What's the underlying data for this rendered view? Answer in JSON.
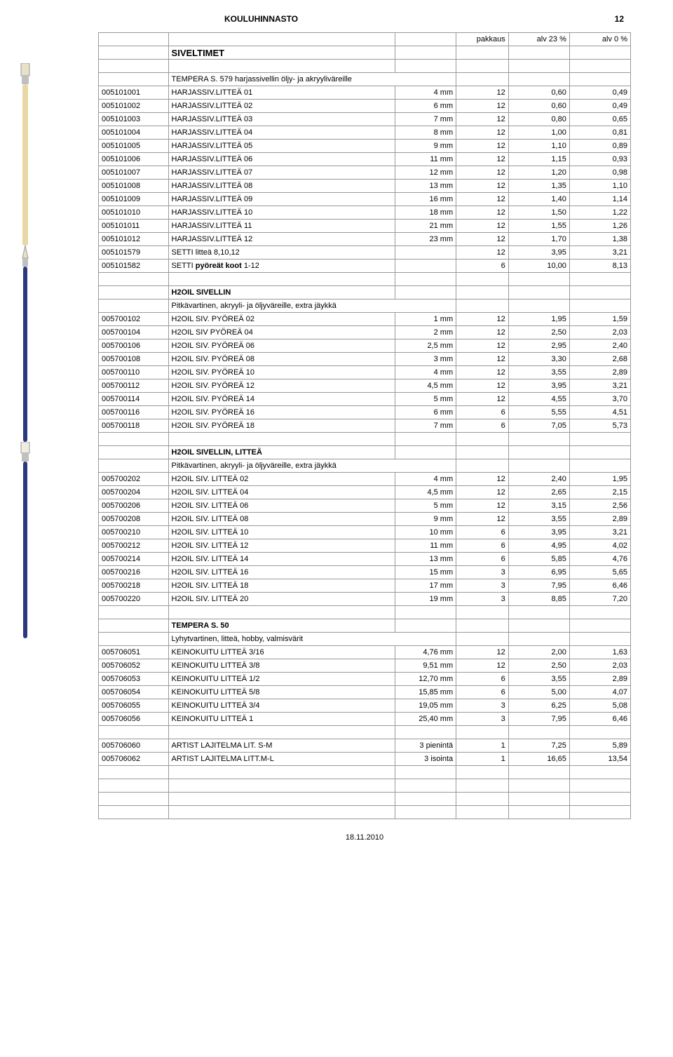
{
  "header": {
    "title": "KOULUHINNASTO",
    "page": "12"
  },
  "top_cols": {
    "c1": "pakkaus",
    "c2": "alv 23 %",
    "c3": "alv 0 %",
    "main": "SIVELTIMET"
  },
  "footer": "18.11.2010",
  "sections": [
    {
      "subtitle": "TEMPERA S. 579 harjassivellin öljy- ja akryyliväreille",
      "rows": [
        [
          "005101001",
          "HARJASSIV.LITTEÄ  01",
          "4 mm",
          "12",
          "0,60",
          "0,49"
        ],
        [
          "005101002",
          "HARJASSIV.LITTEÄ  02",
          "6 mm",
          "12",
          "0,60",
          "0,49"
        ],
        [
          "005101003",
          "HARJASSIV.LITTEÄ  03",
          "7 mm",
          "12",
          "0,80",
          "0,65"
        ],
        [
          "005101004",
          "HARJASSIV.LITTEÄ  04",
          "8 mm",
          "12",
          "1,00",
          "0,81"
        ],
        [
          "005101005",
          "HARJASSIV.LITTEÄ  05",
          "9 mm",
          "12",
          "1,10",
          "0,89"
        ],
        [
          "005101006",
          "HARJASSIV.LITTEÄ  06",
          "11 mm",
          "12",
          "1,15",
          "0,93"
        ],
        [
          "005101007",
          "HARJASSIV.LITTEÄ  07",
          "12 mm",
          "12",
          "1,20",
          "0,98"
        ],
        [
          "005101008",
          "HARJASSIV.LITTEÄ  08",
          "13 mm",
          "12",
          "1,35",
          "1,10"
        ],
        [
          "005101009",
          "HARJASSIV.LITTEÄ  09",
          "16 mm",
          "12",
          "1,40",
          "1,14"
        ],
        [
          "005101010",
          "HARJASSIV.LITTEÄ  10",
          "18 mm",
          "12",
          "1,50",
          "1,22"
        ],
        [
          "005101011",
          "HARJASSIV.LITTEÄ  11",
          "21 mm",
          "12",
          "1,55",
          "1,26"
        ],
        [
          "005101012",
          "HARJASSIV.LITTEÄ  12",
          "23 mm",
          "12",
          "1,70",
          "1,38"
        ],
        [
          "005101579",
          "SETTI litteä 8,10,12",
          "",
          "12",
          "3,95",
          "3,21"
        ],
        [
          "005101582",
          "SETTI <b>pyöreät koot</b> 1-12",
          "",
          "6",
          "10,00",
          "8,13"
        ]
      ]
    },
    {
      "title": "H2OIL SIVELLIN",
      "subtitle": "Pitkävartinen, akryyli- ja öljyväreille, extra jäykkä",
      "rows": [
        [
          "005700102",
          "H2OIL SIV. PYÖREÄ  02",
          "1 mm",
          "12",
          "1,95",
          "1,59"
        ],
        [
          "005700104",
          "H2OIL SIV PYÖREÄ   04",
          "2 mm",
          "12",
          "2,50",
          "2,03"
        ],
        [
          "005700106",
          "H2OIL SIV. PYÖREÄ  06",
          "2,5 mm",
          "12",
          "2,95",
          "2,40"
        ],
        [
          "005700108",
          "H2OIL SIV. PYÖREÄ  08",
          "3 mm",
          "12",
          "3,30",
          "2,68"
        ],
        [
          "005700110",
          "H2OIL SIV. PYÖREÄ  10",
          "4 mm",
          "12",
          "3,55",
          "2,89"
        ],
        [
          "005700112",
          "H2OIL SIV. PYÖREÄ  12",
          "4,5 mm",
          "12",
          "3,95",
          "3,21"
        ],
        [
          "005700114",
          "H2OIL SIV. PYÖREÄ  14",
          "5 mm",
          "12",
          "4,55",
          "3,70"
        ],
        [
          "005700116",
          "H2OIL SIV. PYÖREÄ  16",
          "6 mm",
          "6",
          "5,55",
          "4,51"
        ],
        [
          "005700118",
          "H2OIL SIV. PYÖREÄ  18",
          "7 mm",
          "6",
          "7,05",
          "5,73"
        ]
      ]
    },
    {
      "title": "H2OIL SIVELLIN, LITTEÄ",
      "subtitle": "Pitkävartinen, akryyli- ja öljyväreille, extra jäykkä",
      "rows": [
        [
          "005700202",
          "H2OIL SIV. LITTEÄ  02",
          "4 mm",
          "12",
          "2,40",
          "1,95"
        ],
        [
          "005700204",
          "H2OIL SIV. LITTEÄ  04",
          "4,5 mm",
          "12",
          "2,65",
          "2,15"
        ],
        [
          "005700206",
          "H2OIL SIV. LITTEÄ  06",
          "5 mm",
          "12",
          "3,15",
          "2,56"
        ],
        [
          "005700208",
          "H2OIL SIV. LITTEÄ  08",
          "9 mm",
          "12",
          "3,55",
          "2,89"
        ],
        [
          "005700210",
          "H2OIL SIV. LITTEÄ  10",
          "10 mm",
          "6",
          "3,95",
          "3,21"
        ],
        [
          "005700212",
          "H2OIL SIV. LITTEÄ  12",
          "11 mm",
          "6",
          "4,95",
          "4,02"
        ],
        [
          "005700214",
          "H2OIL SIV. LITTEÄ  14",
          "13 mm",
          "6",
          "5,85",
          "4,76"
        ],
        [
          "005700216",
          "H2OIL SIV. LITTEÄ  16",
          "15 mm",
          "3",
          "6,95",
          "5,65"
        ],
        [
          "005700218",
          "H2OIL SIV. LITTEÄ  18",
          "17 mm",
          "3",
          "7,95",
          "6,46"
        ],
        [
          "005700220",
          "H2OIL SIV. LITTEÄ  20",
          "19 mm",
          "3",
          "8,85",
          "7,20"
        ]
      ]
    },
    {
      "title": "TEMPERA S. 50",
      "subtitle": "Lyhytvartinen, litteä, hobby, valmisvärit",
      "rows": [
        [
          "005706051",
          "KEINOKUITU LITTEÄ  3/16",
          "4,76 mm",
          "12",
          "2,00",
          "1,63"
        ],
        [
          "005706052",
          "KEINOKUITU LITTEÄ  3/8",
          "9,51 mm",
          "12",
          "2,50",
          "2,03"
        ],
        [
          "005706053",
          "KEINOKUITU LITTEÄ  1/2",
          "12,70 mm",
          "6",
          "3,55",
          "2,89"
        ],
        [
          "005706054",
          "KEINOKUITU LITTEÄ  5/8",
          "15,85 mm",
          "6",
          "5,00",
          "4,07"
        ],
        [
          "005706055",
          "KEINOKUITU LITTEÄ  3/4",
          "19,05 mm",
          "3",
          "6,25",
          "5,08"
        ],
        [
          "005706056",
          "KEINOKUITU LITTEÄ  1",
          "25,40 mm",
          "3",
          "7,95",
          "6,46"
        ]
      ]
    },
    {
      "rows": [
        [
          "005706060",
          "ARTIST LAJITELMA LIT. S-M",
          "3 pienintä",
          "1",
          "7,25",
          "5,89"
        ],
        [
          "005706062",
          "ARTIST LAJITELMA LITT.M-L",
          "3 isointa",
          "1",
          "16,65",
          "13,54"
        ]
      ]
    }
  ]
}
